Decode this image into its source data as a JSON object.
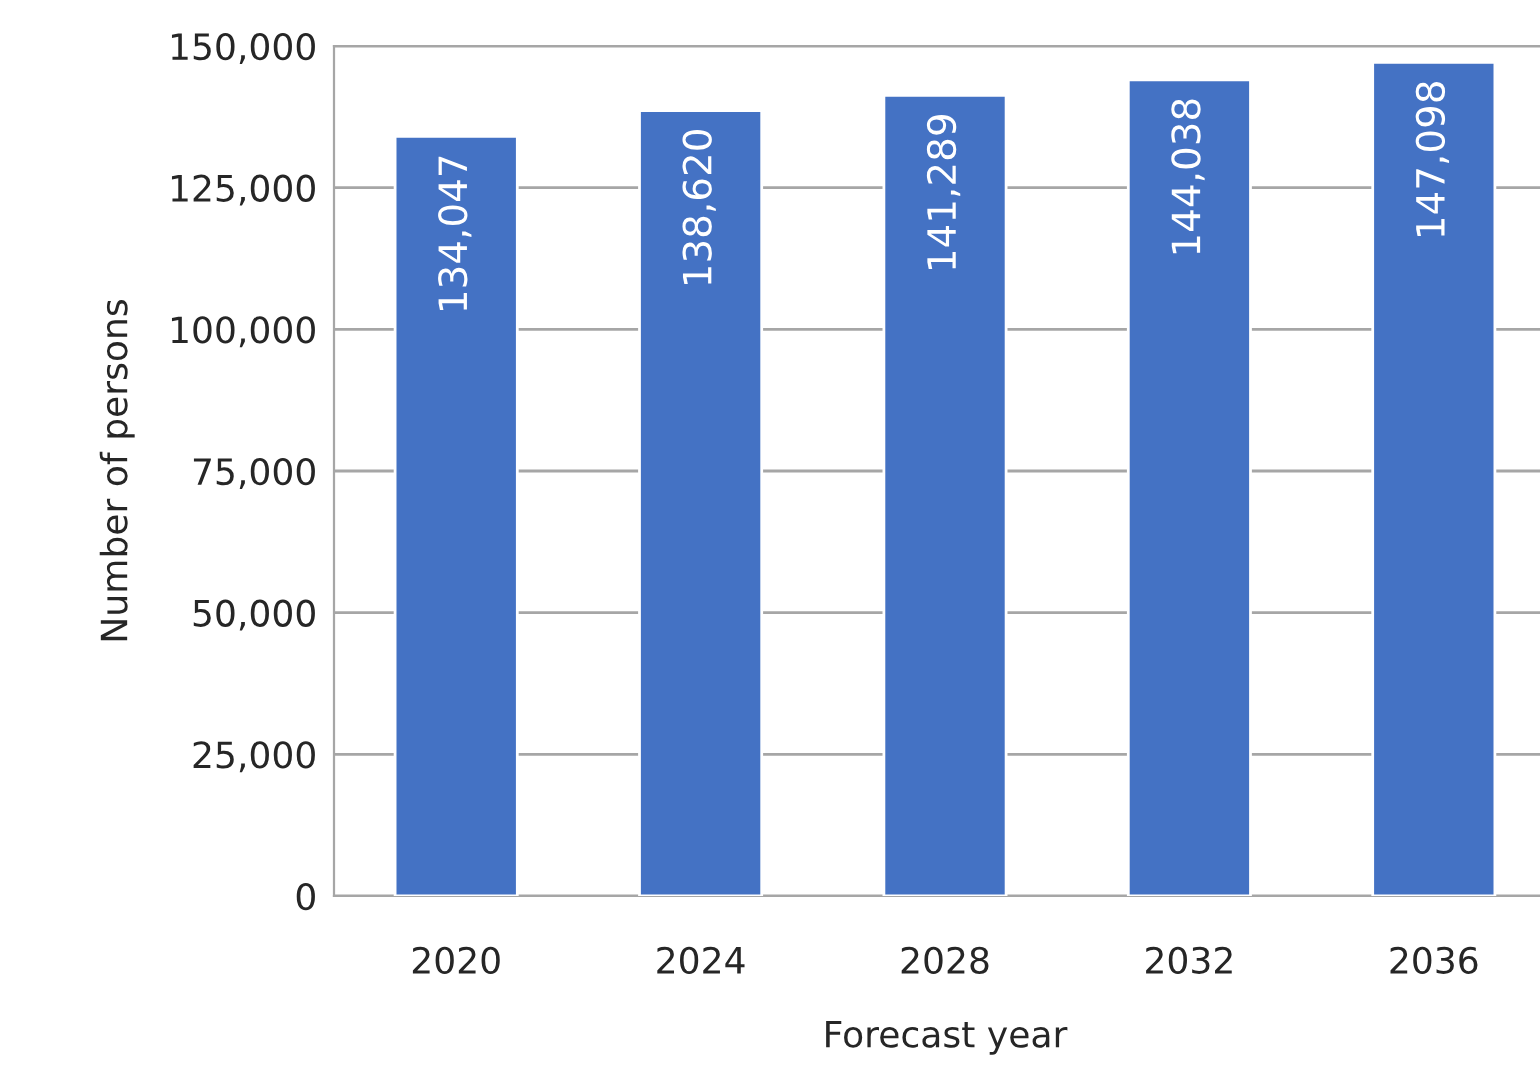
{
  "chart_data": {
    "type": "bar",
    "xlabel": "Forecast year",
    "ylabel": "Number of persons",
    "categories": [
      "2020",
      "2024",
      "2028",
      "2032",
      "2036"
    ],
    "values": [
      134047,
      138620,
      141289,
      144038,
      147098
    ],
    "value_labels": [
      "134,047",
      "138,620",
      "141,289",
      "144,038",
      "147,098"
    ],
    "color": "#4472c4",
    "ylim": [
      0,
      150000
    ],
    "yticks": [
      {
        "value": 0,
        "label": "0"
      },
      {
        "value": 25000,
        "label": "25,000"
      },
      {
        "value": 50000,
        "label": "50,000"
      },
      {
        "value": 75000,
        "label": "75,000"
      },
      {
        "value": 100000,
        "label": "100,000"
      },
      {
        "value": 125000,
        "label": "125,000"
      },
      {
        "value": 150000,
        "label": "150,000"
      }
    ],
    "grid": "y",
    "legend": false
  }
}
